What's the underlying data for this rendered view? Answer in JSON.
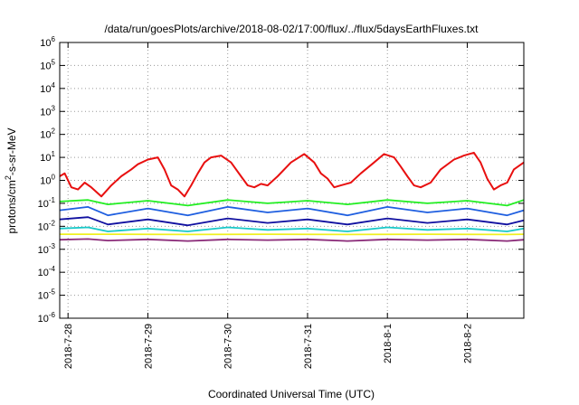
{
  "chart_data": {
    "type": "line",
    "title": "/data/run/goesPlots/archive/2018-08-02/17:00/flux/../flux/5daysEarthFluxes.txt",
    "xlabel": "Coordinated Universal Time (UTC)",
    "ylabel_main": "protons/cm",
    "ylabel_sup": "2",
    "ylabel_tail": "-s-sr-MeV",
    "x_start": "2018-07-27T21:30",
    "x_end": "2018-08-02T17:00",
    "x_ticks": [
      {
        "label": "2018-7-28",
        "date": "2018-07-28T00:00"
      },
      {
        "label": "2018-7-29",
        "date": "2018-07-29T00:00"
      },
      {
        "label": "2018-7-30",
        "date": "2018-07-30T00:00"
      },
      {
        "label": "2018-7-31",
        "date": "2018-07-31T00:00"
      },
      {
        "label": "2018-8-1",
        "date": "2018-08-01T00:00"
      },
      {
        "label": "2018-8-2",
        "date": "2018-08-02T00:00"
      }
    ],
    "y_scale": "log",
    "ylim": [
      1e-06,
      1000000.0
    ],
    "y_ticks": [
      {
        "base": "10",
        "exp": "6",
        "value": 1000000.0
      },
      {
        "base": "10",
        "exp": "5",
        "value": 100000.0
      },
      {
        "base": "10",
        "exp": "4",
        "value": 10000.0
      },
      {
        "base": "10",
        "exp": "3",
        "value": 1000.0
      },
      {
        "base": "10",
        "exp": "2",
        "value": 100.0
      },
      {
        "base": "10",
        "exp": "1",
        "value": 10.0
      },
      {
        "base": "10",
        "exp": "0",
        "value": 1
      },
      {
        "base": "10",
        "exp": "-1",
        "value": 0.1
      },
      {
        "base": "10",
        "exp": "-2",
        "value": 0.01
      },
      {
        "base": "10",
        "exp": "-3",
        "value": 0.001
      },
      {
        "base": "10",
        "exp": "-4",
        "value": 0.0001
      },
      {
        "base": "10",
        "exp": "-5",
        "value": 1e-05
      },
      {
        "base": "10",
        "exp": "-6",
        "value": 1e-06
      }
    ],
    "grid": true,
    "series": [
      {
        "color": "#e81010",
        "x": [
          "2018-07-27T21:30",
          "2018-07-27T23:00",
          "2018-07-28T01:00",
          "2018-07-28T03:00",
          "2018-07-28T05:00",
          "2018-07-28T07:00",
          "2018-07-28T10:00",
          "2018-07-28T13:00",
          "2018-07-28T16:00",
          "2018-07-28T19:00",
          "2018-07-28T21:00",
          "2018-07-29T00:00",
          "2018-07-29T03:00",
          "2018-07-29T05:00",
          "2018-07-29T07:00",
          "2018-07-29T09:00",
          "2018-07-29T11:00",
          "2018-07-29T13:00",
          "2018-07-29T15:00",
          "2018-07-29T17:00",
          "2018-07-29T19:00",
          "2018-07-29T22:00",
          "2018-07-30T01:00",
          "2018-07-30T04:00",
          "2018-07-30T06:00",
          "2018-07-30T08:00",
          "2018-07-30T10:00",
          "2018-07-30T12:00",
          "2018-07-30T15:00",
          "2018-07-30T19:00",
          "2018-07-30T23:00",
          "2018-07-31T02:00",
          "2018-07-31T04:00",
          "2018-07-31T06:00",
          "2018-07-31T08:00",
          "2018-07-31T10:00",
          "2018-07-31T13:00",
          "2018-07-31T16:00",
          "2018-07-31T20:00",
          "2018-07-31T23:00",
          "2018-08-01T02:00",
          "2018-08-01T04:00",
          "2018-08-01T06:00",
          "2018-08-01T08:00",
          "2018-08-01T10:00",
          "2018-08-01T13:00",
          "2018-08-01T16:00",
          "2018-08-01T20:00",
          "2018-08-01T23:00",
          "2018-08-02T02:00",
          "2018-08-02T04:00",
          "2018-08-02T06:00",
          "2018-08-02T08:00",
          "2018-08-02T10:00",
          "2018-08-02T12:00",
          "2018-08-02T14:00",
          "2018-08-02T17:00"
        ],
        "values": [
          1.5,
          2.0,
          0.5,
          0.4,
          0.8,
          0.5,
          0.2,
          0.6,
          1.5,
          3.0,
          5.0,
          8.0,
          10.0,
          3.0,
          0.6,
          0.4,
          0.2,
          0.6,
          2.0,
          6.0,
          10.0,
          12.0,
          6.0,
          1.5,
          0.6,
          0.5,
          0.7,
          0.6,
          1.5,
          6.0,
          14.0,
          6.0,
          2.0,
          1.2,
          0.5,
          0.6,
          0.8,
          2.0,
          6.0,
          14.0,
          10.0,
          4.0,
          1.5,
          0.6,
          0.5,
          0.8,
          3.0,
          8.0,
          12.0,
          16.0,
          6.0,
          1.2,
          0.4,
          0.6,
          0.8,
          3.0,
          6.0
        ]
      },
      {
        "color": "#22ee22",
        "x": [
          "2018-07-27T21:30",
          "2018-07-28T06:00",
          "2018-07-28T12:00",
          "2018-07-29T00:00",
          "2018-07-29T12:00",
          "2018-07-30T00:00",
          "2018-07-30T12:00",
          "2018-07-31T00:00",
          "2018-07-31T12:00",
          "2018-08-01T00:00",
          "2018-08-01T12:00",
          "2018-08-02T00:00",
          "2018-08-02T12:00",
          "2018-08-02T17:00"
        ],
        "values": [
          0.12,
          0.14,
          0.09,
          0.13,
          0.08,
          0.14,
          0.1,
          0.13,
          0.09,
          0.14,
          0.1,
          0.13,
          0.08,
          0.14
        ]
      },
      {
        "color": "#1f5fe0",
        "x": [
          "2018-07-27T21:30",
          "2018-07-28T06:00",
          "2018-07-28T12:00",
          "2018-07-29T00:00",
          "2018-07-29T12:00",
          "2018-07-30T00:00",
          "2018-07-30T12:00",
          "2018-07-31T00:00",
          "2018-07-31T12:00",
          "2018-08-01T00:00",
          "2018-08-01T12:00",
          "2018-08-02T00:00",
          "2018-08-02T12:00",
          "2018-08-02T17:00"
        ],
        "values": [
          0.05,
          0.07,
          0.03,
          0.06,
          0.03,
          0.07,
          0.04,
          0.06,
          0.03,
          0.07,
          0.04,
          0.06,
          0.03,
          0.05
        ]
      },
      {
        "color": "#1010a0",
        "x": [
          "2018-07-27T21:30",
          "2018-07-28T06:00",
          "2018-07-28T12:00",
          "2018-07-29T00:00",
          "2018-07-29T12:00",
          "2018-07-30T00:00",
          "2018-07-30T12:00",
          "2018-07-31T00:00",
          "2018-07-31T12:00",
          "2018-08-01T00:00",
          "2018-08-01T12:00",
          "2018-08-02T00:00",
          "2018-08-02T12:00",
          "2018-08-02T17:00"
        ],
        "values": [
          0.02,
          0.025,
          0.012,
          0.02,
          0.011,
          0.022,
          0.014,
          0.02,
          0.012,
          0.022,
          0.014,
          0.02,
          0.012,
          0.018
        ]
      },
      {
        "color": "#18c8c8",
        "x": [
          "2018-07-27T21:30",
          "2018-07-28T06:00",
          "2018-07-28T12:00",
          "2018-07-29T00:00",
          "2018-07-29T12:00",
          "2018-07-30T00:00",
          "2018-07-30T12:00",
          "2018-07-31T00:00",
          "2018-07-31T12:00",
          "2018-08-01T00:00",
          "2018-08-01T12:00",
          "2018-08-02T00:00",
          "2018-08-02T12:00",
          "2018-08-02T17:00"
        ],
        "values": [
          0.008,
          0.009,
          0.006,
          0.008,
          0.006,
          0.009,
          0.007,
          0.008,
          0.006,
          0.009,
          0.007,
          0.008,
          0.006,
          0.008
        ]
      },
      {
        "color": "#f0f020",
        "x": [
          "2018-07-27T21:30",
          "2018-07-28T12:00",
          "2018-07-29T12:00",
          "2018-07-30T12:00",
          "2018-07-31T12:00",
          "2018-08-01T12:00",
          "2018-08-02T12:00",
          "2018-08-02T17:00"
        ],
        "values": [
          0.0045,
          0.0045,
          0.0044,
          0.0045,
          0.0044,
          0.0045,
          0.0044,
          0.0045
        ]
      },
      {
        "color": "#8a2a78",
        "x": [
          "2018-07-27T21:30",
          "2018-07-28T06:00",
          "2018-07-28T12:00",
          "2018-07-29T00:00",
          "2018-07-29T12:00",
          "2018-07-30T00:00",
          "2018-07-30T12:00",
          "2018-07-31T00:00",
          "2018-07-31T12:00",
          "2018-08-01T00:00",
          "2018-08-01T12:00",
          "2018-08-02T00:00",
          "2018-08-02T12:00",
          "2018-08-02T17:00"
        ],
        "values": [
          0.0026,
          0.0028,
          0.0024,
          0.0027,
          0.0023,
          0.0027,
          0.0025,
          0.0027,
          0.0023,
          0.0027,
          0.0025,
          0.0027,
          0.0023,
          0.0026
        ]
      }
    ]
  }
}
